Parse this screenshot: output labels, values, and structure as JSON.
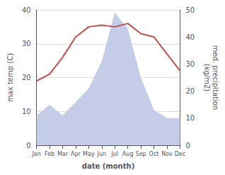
{
  "chart_data": {
    "type": "line",
    "xlabel": "date (month)",
    "ylabel": "max temp (C)",
    "y2label": "med. precipitation\n(kg/m2)",
    "categories": [
      "Jan",
      "Feb",
      "Mar",
      "Apr",
      "May",
      "Jun",
      "Jul",
      "Aug",
      "Sep",
      "Oct",
      "Nov",
      "Dec"
    ],
    "series": [
      {
        "type": "area",
        "axis": "y2",
        "color": "#c5cce8",
        "values": [
          11,
          15,
          11,
          16,
          21,
          31,
          49,
          43,
          25,
          13,
          10,
          10
        ]
      },
      {
        "type": "line",
        "color": "#c0504d",
        "values": [
          19,
          21,
          26,
          32,
          35,
          35.5,
          35,
          36,
          33,
          32,
          27,
          22
        ]
      }
    ],
    "ylim": [
      0,
      40
    ],
    "yticks": [
      0,
      10,
      20,
      30,
      40
    ],
    "y2lim": [
      0,
      50
    ],
    "y2ticks": [
      0,
      10,
      20,
      30,
      40,
      50
    ],
    "grid": true
  }
}
